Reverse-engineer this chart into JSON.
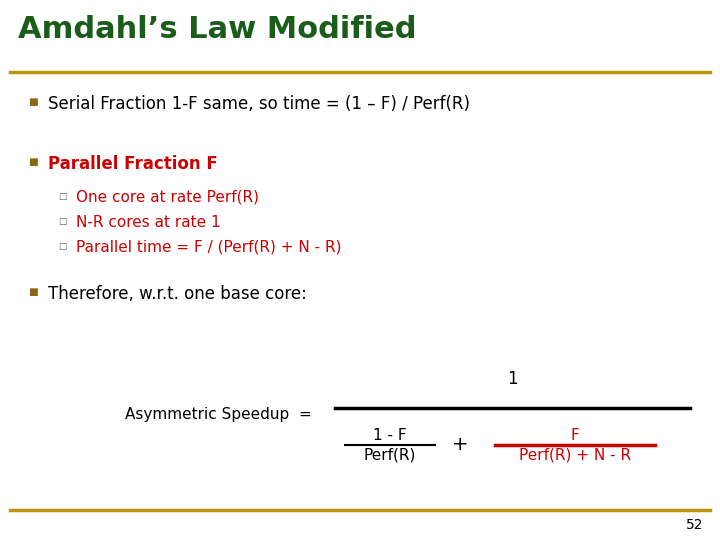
{
  "title": "Amdahl’s Law Modified",
  "title_color": "#1a5c1a",
  "title_fontsize": 22,
  "bg_color": "#ffffff",
  "border_color": "#b8960c",
  "bullet_color": "#8b6914",
  "bullet1_text": "Serial Fraction 1-F same, so time = (1 – F) / Perf(R)",
  "bullet1_color": "#000000",
  "bullet2_text": "Parallel Fraction F",
  "bullet2_color": "#cc0000",
  "sub_bullets": [
    "One core at rate Perf(R)",
    "N-R cores at rate 1",
    "Parallel time = F / (Perf(R) + N - R)"
  ],
  "sub_bullet_color": "#cc0000",
  "bullet3_text": "Therefore, w.r.t. one base core:",
  "bullet3_color": "#000000",
  "formula_label": "Asymmetric Speedup  =",
  "formula_label_color": "#000000",
  "numerator_top": "1",
  "num_left_top": "1 - F",
  "num_left_bottom": "Perf(R)",
  "plus": "+",
  "num_right_top": "F",
  "num_right_top_color": "#cc0000",
  "num_right_bottom": "Perf(R) + N - R",
  "num_right_bottom_color": "#cc0000",
  "num_right_line_color": "#cc0000",
  "page_number": "52",
  "font_size_bullet": 12,
  "font_size_sub": 11,
  "font_size_formula": 11
}
